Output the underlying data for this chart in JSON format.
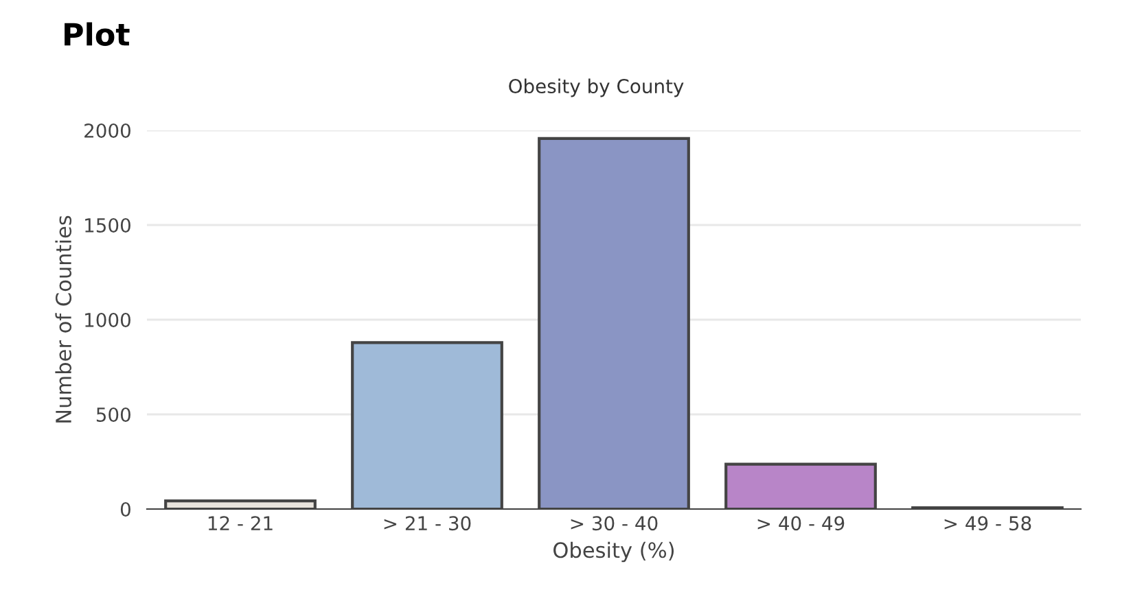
{
  "chart_data": {
    "type": "bar",
    "title": "Plot",
    "subtitle": "Obesity by County",
    "xlabel": "Obesity (%)",
    "ylabel": "Number of Counties",
    "categories": [
      "12 - 21",
      "> 21 - 30",
      "> 30 - 40",
      "> 40 - 49",
      "> 49 - 58"
    ],
    "values": [
      43,
      879,
      1957,
      237,
      7
    ],
    "colors": [
      "#e8e3dc",
      "#9fbad8",
      "#8a95c4",
      "#b885c8",
      "#23233d"
    ],
    "ylim": [
      0,
      2000
    ],
    "yticks": [
      0,
      500,
      1000,
      1500,
      2000
    ],
    "grid": "y"
  }
}
